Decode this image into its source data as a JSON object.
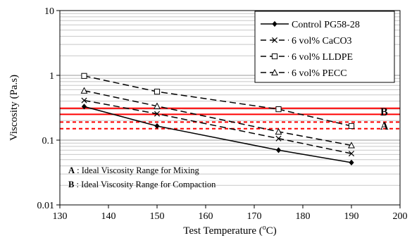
{
  "chart_data": {
    "type": "line",
    "xlabel": "Test Temperature (",
    "xlabel_sup": "o",
    "xlabel_end": "C)",
    "ylabel": "Viscosity (Pa.s)",
    "xlim": [
      130,
      200
    ],
    "ylim": [
      0.01,
      10
    ],
    "y_scale": "log",
    "x_ticks": [
      130,
      140,
      150,
      160,
      170,
      180,
      190,
      200
    ],
    "x_tick_labels": [
      "130",
      "140",
      "150",
      "160",
      "170",
      "180",
      "190",
      "200"
    ],
    "y_ticks": [
      0.01,
      0.1,
      1,
      10
    ],
    "y_tick_labels": [
      "0.01",
      "0.1",
      "1",
      "10"
    ],
    "grid": "horizontal",
    "legend_position": "top-right",
    "series": [
      {
        "name": "Control PG58-28",
        "marker": "diamond",
        "line": "solid",
        "x": [
          135,
          150,
          175,
          190
        ],
        "y": [
          0.33,
          0.165,
          0.07,
          0.045
        ]
      },
      {
        "name": "6 vol% CaCO3",
        "marker": "x",
        "line": "dashed",
        "x": [
          135,
          150,
          175,
          190
        ],
        "y": [
          0.41,
          0.255,
          0.106,
          0.062
        ]
      },
      {
        "name": "6 vol% LLDPE",
        "marker": "square",
        "line": "dashed",
        "x": [
          135,
          150,
          175,
          190
        ],
        "y": [
          0.98,
          0.56,
          0.3,
          0.165
        ]
      },
      {
        "name": "6 vol% PECC",
        "marker": "triangle",
        "line": "dashed",
        "x": [
          135,
          150,
          175,
          190
        ],
        "y": [
          0.58,
          0.335,
          0.135,
          0.083
        ]
      }
    ],
    "bands": [
      {
        "label": "B",
        "line": "solid",
        "color": "#ff0000",
        "range": [
          0.25,
          0.31
        ]
      },
      {
        "label": "A",
        "line": "dashed",
        "color": "#ff0000",
        "range": [
          0.15,
          0.19
        ]
      }
    ],
    "annotations": [
      {
        "key": "A",
        "text": " : Ideal Viscosity Range for Mixing"
      },
      {
        "key": "B",
        "text": " : Ideal Viscosity Range for Compaction"
      }
    ]
  }
}
